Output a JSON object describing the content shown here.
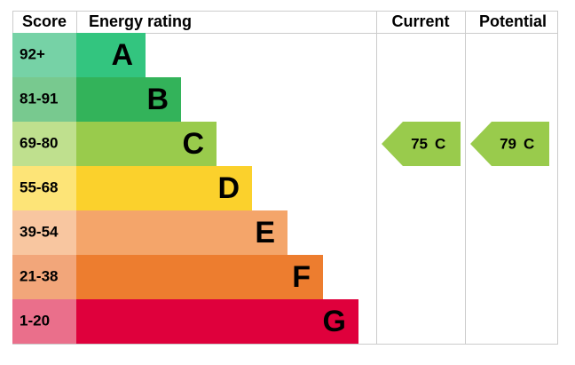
{
  "headers": {
    "score": "Score",
    "rating": "Energy rating",
    "current": "Current",
    "potential": "Potential"
  },
  "bands": [
    {
      "range": "92+",
      "letter": "A",
      "color": "#33c57f",
      "light": "#76d2a6"
    },
    {
      "range": "81-91",
      "letter": "B",
      "color": "#33b35a",
      "light": "#78c98f"
    },
    {
      "range": "69-80",
      "letter": "C",
      "color": "#99cb4c",
      "light": "#bfe08e"
    },
    {
      "range": "55-68",
      "letter": "D",
      "color": "#fbd12c",
      "light": "#fde477"
    },
    {
      "range": "39-54",
      "letter": "E",
      "color": "#f4a56a",
      "light": "#f8c6a0"
    },
    {
      "range": "21-38",
      "letter": "F",
      "color": "#ed7d2f",
      "light": "#f2a67a"
    },
    {
      "range": "1-20",
      "letter": "G",
      "color": "#df003c",
      "light": "#ea6f8b"
    }
  ],
  "current": {
    "score": 75,
    "letter": "C"
  },
  "potential": {
    "score": 79,
    "letter": "C"
  }
}
